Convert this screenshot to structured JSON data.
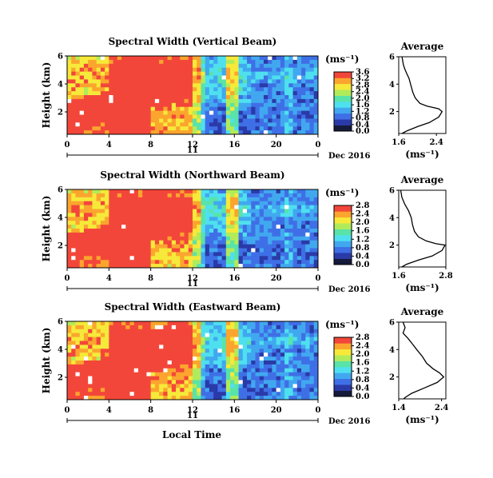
{
  "figure": {
    "date_label": "Dec 2016",
    "xlabel": "Local Time",
    "ylabel": "Height (km)",
    "cbar_unit": "(ms⁻¹)",
    "avg_title": "Average",
    "avg_unit": "(ms⁻¹)"
  },
  "chart_data": [
    {
      "type": "heatmap",
      "title": "Spectral Width (Vertical Beam)",
      "xlabel": "Local Time",
      "ylabel": "Height (km)",
      "x_ticks": [
        "0",
        "4",
        "8",
        "12",
        "16",
        "20",
        "0"
      ],
      "x_range_hours": [
        0,
        24
      ],
      "day_axis_label": "11",
      "y_ticks": [
        "2",
        "4",
        "6"
      ],
      "ylim": [
        0.4,
        6
      ],
      "colorbar": {
        "unit": "(ms⁻¹)",
        "ticks": [
          "0.0",
          "0.4",
          "0.8",
          "1.2",
          "1.6",
          "2.0",
          "2.4",
          "2.8",
          "3.2",
          "3.6"
        ],
        "range": [
          0,
          3.6
        ]
      },
      "average_profile": {
        "title": "Average",
        "xlabel": "(ms⁻¹)",
        "x_ticks": [
          "1.6",
          "2.4"
        ],
        "xlim": [
          1.6,
          2.6
        ],
        "y_ticks": [
          "2",
          "4",
          "6"
        ],
        "ylim": [
          0.4,
          6
        ],
        "points": [
          [
            1.67,
            6.0
          ],
          [
            1.7,
            5.4
          ],
          [
            1.74,
            5.0
          ],
          [
            1.82,
            4.4
          ],
          [
            1.86,
            3.9
          ],
          [
            1.9,
            3.4
          ],
          [
            1.95,
            3.0
          ],
          [
            2.05,
            2.6
          ],
          [
            2.2,
            2.4
          ],
          [
            2.45,
            2.2
          ],
          [
            2.52,
            2.0
          ],
          [
            2.45,
            1.6
          ],
          [
            2.25,
            1.2
          ],
          [
            2.0,
            0.9
          ],
          [
            1.78,
            0.6
          ],
          [
            1.67,
            0.4
          ]
        ]
      }
    },
    {
      "type": "heatmap",
      "title": "Spectral Width (Northward Beam)",
      "xlabel": "Local Time",
      "ylabel": "Height (km)",
      "x_ticks": [
        "0",
        "4",
        "8",
        "12",
        "16",
        "20",
        "0"
      ],
      "x_range_hours": [
        0,
        24
      ],
      "day_axis_label": "11",
      "y_ticks": [
        "2",
        "4",
        "6"
      ],
      "ylim": [
        0.4,
        6
      ],
      "colorbar": {
        "unit": "(ms⁻¹)",
        "ticks": [
          "0.0",
          "0.4",
          "0.8",
          "1.2",
          "1.6",
          "2.0",
          "2.4",
          "2.8"
        ],
        "range": [
          0,
          2.8
        ]
      },
      "average_profile": {
        "title": "Average",
        "xlabel": "(ms⁻¹)",
        "x_ticks": [
          "1.6",
          "2.8"
        ],
        "xlim": [
          1.6,
          2.8
        ],
        "y_ticks": [
          "2",
          "4",
          "6"
        ],
        "ylim": [
          0.4,
          6
        ],
        "points": [
          [
            1.65,
            6.0
          ],
          [
            1.68,
            5.5
          ],
          [
            1.75,
            5.0
          ],
          [
            1.85,
            4.5
          ],
          [
            1.92,
            4.0
          ],
          [
            1.95,
            3.5
          ],
          [
            2.0,
            3.0
          ],
          [
            2.1,
            2.6
          ],
          [
            2.3,
            2.3
          ],
          [
            2.55,
            2.1
          ],
          [
            2.78,
            2.0
          ],
          [
            2.7,
            1.6
          ],
          [
            2.45,
            1.2
          ],
          [
            2.1,
            0.9
          ],
          [
            1.8,
            0.6
          ],
          [
            1.68,
            0.4
          ]
        ]
      }
    },
    {
      "type": "heatmap",
      "title": "Spectral Width (Eastward Beam)",
      "xlabel": "Local Time",
      "ylabel": "Height (km)",
      "x_ticks": [
        "0",
        "4",
        "8",
        "12",
        "16",
        "20",
        "0"
      ],
      "x_range_hours": [
        0,
        24
      ],
      "day_axis_label": "11",
      "y_ticks": [
        "2",
        "4",
        "6"
      ],
      "ylim": [
        0.4,
        6
      ],
      "colorbar": {
        "unit": "(ms⁻¹)",
        "ticks": [
          "0.0",
          "0.4",
          "0.8",
          "1.2",
          "1.6",
          "2.0",
          "2.4",
          "2.8"
        ],
        "range": [
          0,
          2.8
        ]
      },
      "average_profile": {
        "title": "Average",
        "xlabel": "(ms⁻¹)",
        "x_ticks": [
          "1.4",
          "2.4"
        ],
        "xlim": [
          1.4,
          2.5
        ],
        "y_ticks": [
          "2",
          "4",
          "6"
        ],
        "ylim": [
          0.4,
          6
        ],
        "points": [
          [
            1.5,
            6.0
          ],
          [
            1.55,
            5.6
          ],
          [
            1.5,
            5.2
          ],
          [
            1.62,
            4.8
          ],
          [
            1.72,
            4.4
          ],
          [
            1.82,
            4.0
          ],
          [
            1.95,
            3.5
          ],
          [
            2.05,
            3.0
          ],
          [
            2.2,
            2.6
          ],
          [
            2.35,
            2.3
          ],
          [
            2.45,
            2.0
          ],
          [
            2.3,
            1.6
          ],
          [
            2.0,
            1.2
          ],
          [
            1.7,
            0.8
          ],
          [
            1.55,
            0.5
          ],
          [
            1.52,
            0.4
          ]
        ]
      }
    }
  ]
}
